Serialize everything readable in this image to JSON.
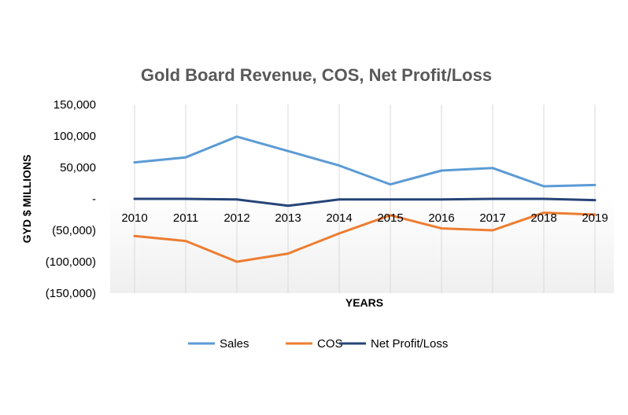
{
  "chart_data": {
    "type": "line",
    "title": "Gold Board Revenue, COS, Net Profit/Loss",
    "xlabel": "YEARS",
    "ylabel": "GYD $ MILLIONS",
    "categories": [
      "2010",
      "2011",
      "2012",
      "2013",
      "2014",
      "2015",
      "2016",
      "2017",
      "2018",
      "2019"
    ],
    "y_ticks": [
      {
        "value": 150000,
        "label": "150,000"
      },
      {
        "value": 100000,
        "label": "100,000"
      },
      {
        "value": 50000,
        "label": "50,000"
      },
      {
        "value": 0,
        "label": "-"
      },
      {
        "value": -50000,
        "label": "(50,000)"
      },
      {
        "value": -100000,
        "label": "(100,000)"
      },
      {
        "value": -150000,
        "label": "(150,000)"
      }
    ],
    "ylim": [
      -150000,
      150000
    ],
    "grid": "vertical",
    "legend_position": "bottom",
    "series": [
      {
        "name": "Sales",
        "color": "#5B9BD5",
        "values": [
          58000,
          66000,
          99000,
          76000,
          53000,
          23000,
          45000,
          49000,
          20000,
          22000
        ]
      },
      {
        "name": "COS",
        "color": "#ED7D31",
        "values": [
          -59000,
          -67000,
          -100000,
          -87000,
          -55000,
          -26000,
          -47000,
          -50000,
          -22000,
          -25000
        ]
      },
      {
        "name": "Net Profit/Loss",
        "color": "#264478",
        "values": [
          0,
          0,
          -1000,
          -11000,
          -1000,
          -1000,
          -1000,
          0,
          0,
          -2000
        ]
      }
    ]
  }
}
